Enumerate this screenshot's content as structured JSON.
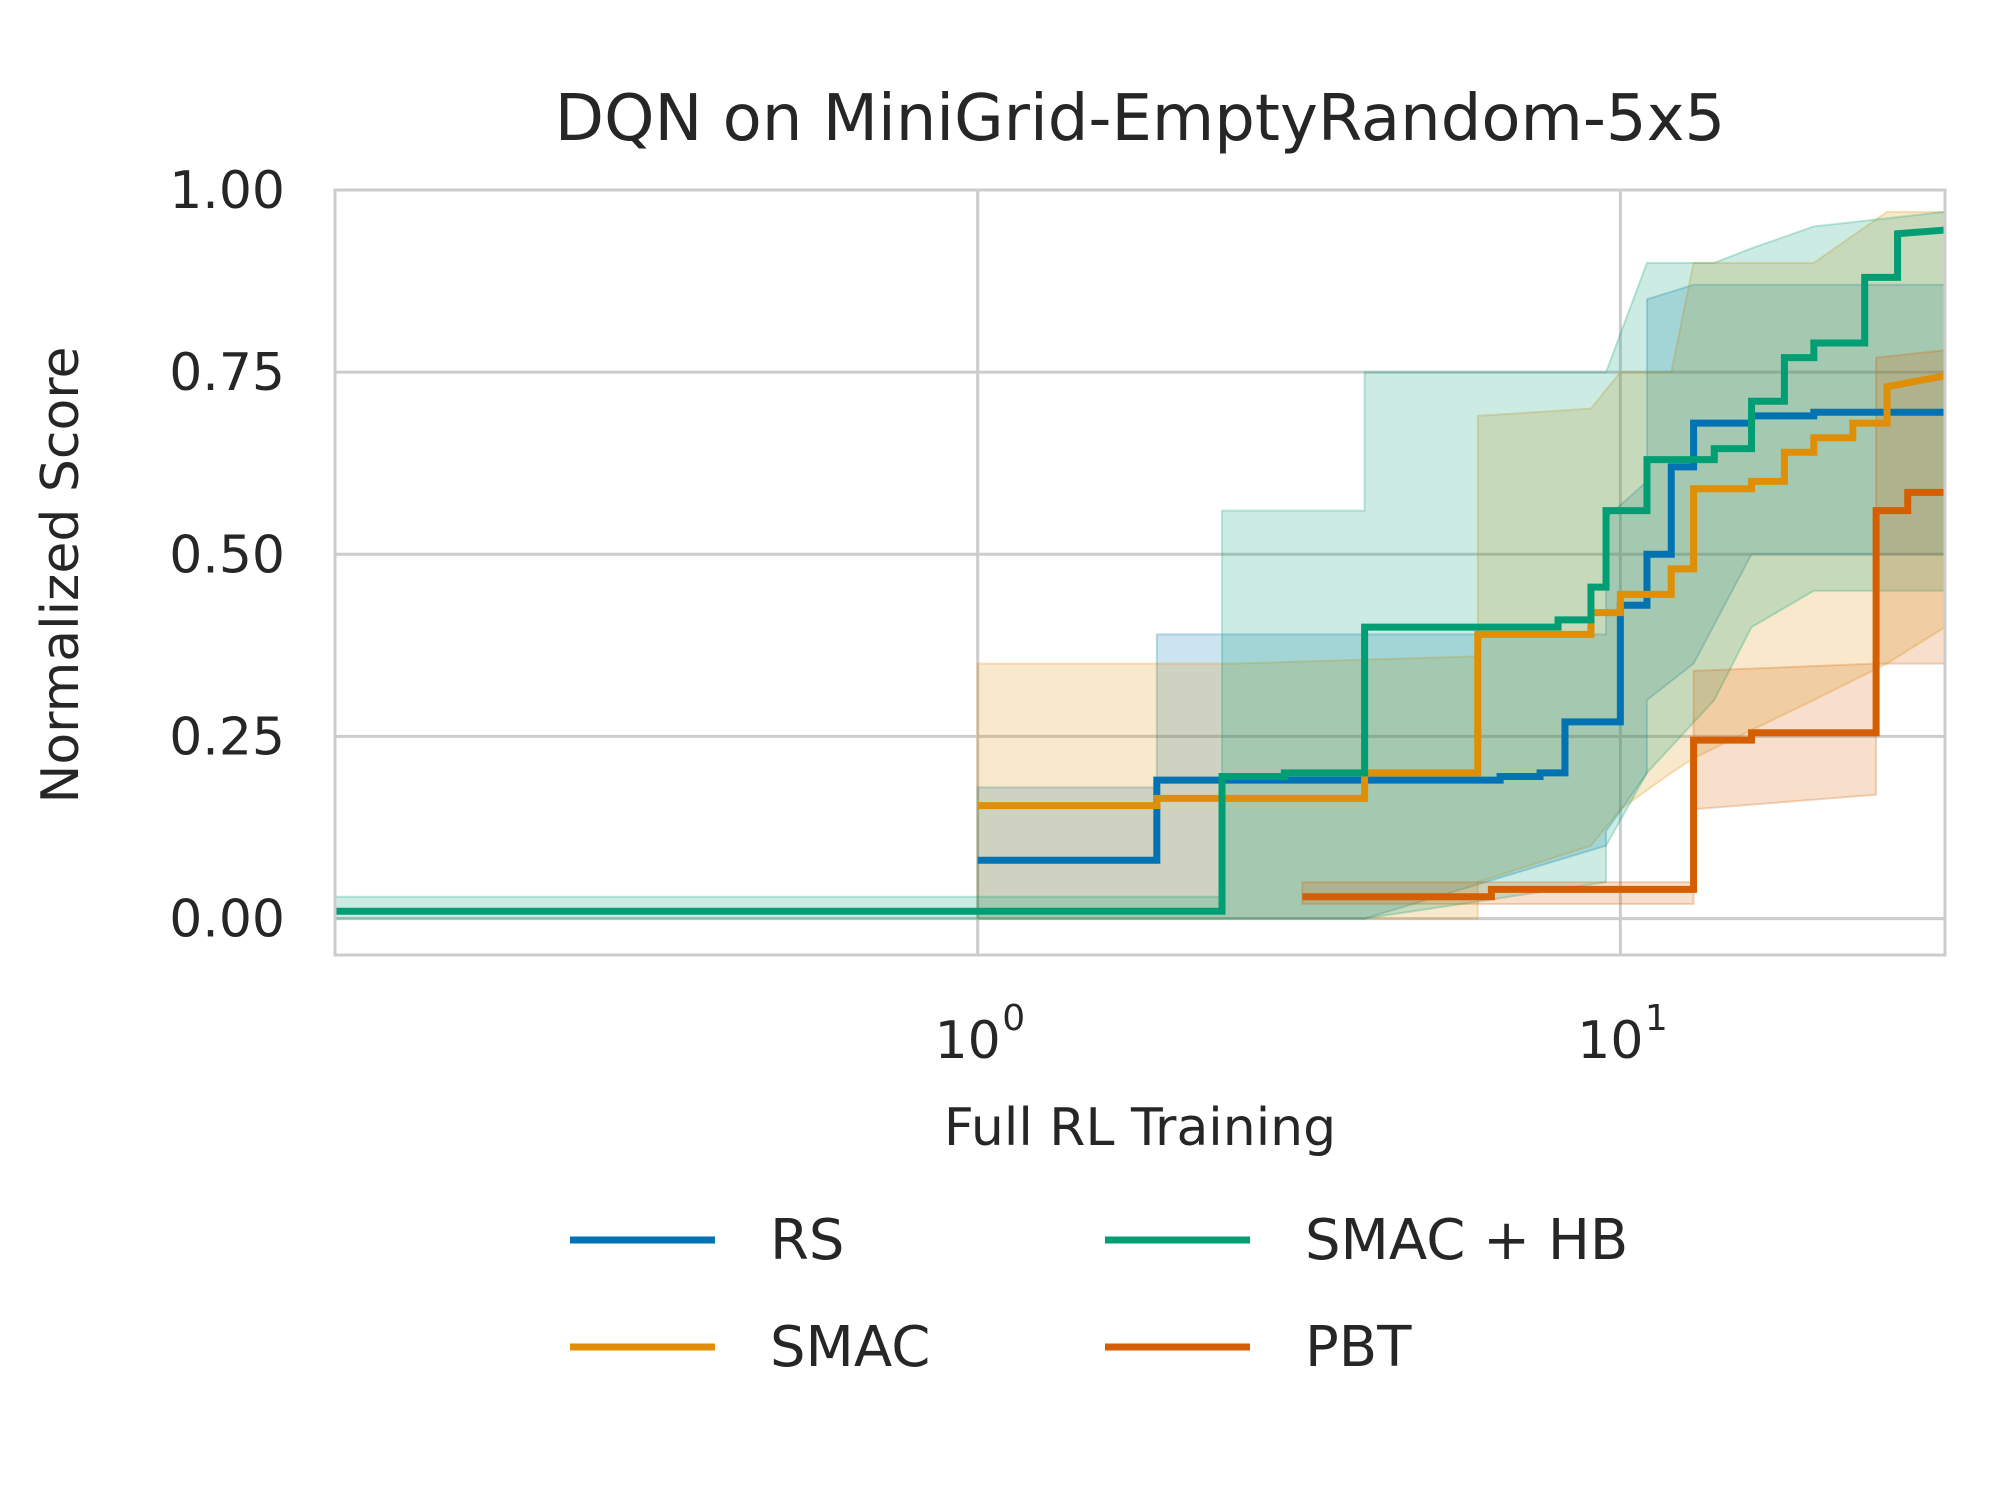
{
  "chart_data": {
    "type": "line",
    "title": "DQN on MiniGrid-EmptyRandom-5x5",
    "xlabel": "Full RL Training",
    "ylabel": "Normalized Score",
    "xscale": "log",
    "xlim": [
      0.1,
      32
    ],
    "ylim": [
      -0.05,
      1.0
    ],
    "grid": true,
    "legend_position": "bottom",
    "yticks": [
      {
        "value": 0.0,
        "label": "0.00"
      },
      {
        "value": 0.25,
        "label": "0.25"
      },
      {
        "value": 0.5,
        "label": "0.50"
      },
      {
        "value": 0.75,
        "label": "0.75"
      },
      {
        "value": 1.0,
        "label": "1.00"
      }
    ],
    "xticks": [
      {
        "value": 1,
        "base": "10",
        "exp": "0"
      },
      {
        "value": 10,
        "base": "10",
        "exp": "1"
      }
    ],
    "series": [
      {
        "name": "RS",
        "color": "#0173b2",
        "points": [
          [
            1.0,
            0.08
          ],
          [
            1.9,
            0.08
          ],
          [
            1.9,
            0.19
          ],
          [
            6.5,
            0.19
          ],
          [
            6.5,
            0.195
          ],
          [
            7.5,
            0.195
          ],
          [
            7.5,
            0.2
          ],
          [
            8.2,
            0.2
          ],
          [
            8.2,
            0.27
          ],
          [
            10.0,
            0.27
          ],
          [
            10.0,
            0.43
          ],
          [
            11.0,
            0.43
          ],
          [
            11.0,
            0.5
          ],
          [
            12.0,
            0.5
          ],
          [
            12.0,
            0.62
          ],
          [
            13.0,
            0.62
          ],
          [
            13.0,
            0.68
          ],
          [
            16.0,
            0.68
          ],
          [
            16.0,
            0.69
          ],
          [
            20.0,
            0.69
          ],
          [
            20.0,
            0.695
          ],
          [
            32.0,
            0.695
          ]
        ],
        "band": [
          [
            1.0,
            0.0,
            0.18
          ],
          [
            1.9,
            0.0,
            0.18
          ],
          [
            1.9,
            0.0,
            0.39
          ],
          [
            4.0,
            0.0,
            0.39
          ],
          [
            4.0,
            0.0,
            0.39
          ],
          [
            9.5,
            0.1,
            0.39
          ],
          [
            9.5,
            0.12,
            0.55
          ],
          [
            11.0,
            0.2,
            0.6
          ],
          [
            11.0,
            0.3,
            0.85
          ],
          [
            13.0,
            0.35,
            0.87
          ],
          [
            16.0,
            0.5,
            0.87
          ],
          [
            32.0,
            0.5,
            0.87
          ]
        ]
      },
      {
        "name": "SMAC",
        "color": "#de8f05",
        "points": [
          [
            1.0,
            0.155
          ],
          [
            1.9,
            0.155
          ],
          [
            1.9,
            0.165
          ],
          [
            4.0,
            0.165
          ],
          [
            4.0,
            0.2
          ],
          [
            6.0,
            0.2
          ],
          [
            6.0,
            0.39
          ],
          [
            9.0,
            0.39
          ],
          [
            9.0,
            0.42
          ],
          [
            10.0,
            0.42
          ],
          [
            10.0,
            0.445
          ],
          [
            12.0,
            0.445
          ],
          [
            12.0,
            0.48
          ],
          [
            13.0,
            0.48
          ],
          [
            13.0,
            0.59
          ],
          [
            16.0,
            0.59
          ],
          [
            16.0,
            0.6
          ],
          [
            18.0,
            0.6
          ],
          [
            18.0,
            0.64
          ],
          [
            20.0,
            0.64
          ],
          [
            20.0,
            0.66
          ],
          [
            23.0,
            0.66
          ],
          [
            23.0,
            0.68
          ],
          [
            26.0,
            0.68
          ],
          [
            26.0,
            0.73
          ],
          [
            32.0,
            0.745
          ]
        ],
        "band": [
          [
            1.0,
            0.0,
            0.35
          ],
          [
            1.9,
            0.0,
            0.35
          ],
          [
            2.5,
            0.0,
            0.35
          ],
          [
            6.0,
            0.0,
            0.36
          ],
          [
            6.0,
            0.05,
            0.69
          ],
          [
            9.0,
            0.1,
            0.7
          ],
          [
            10.0,
            0.15,
            0.75
          ],
          [
            12.0,
            0.2,
            0.75
          ],
          [
            13.0,
            0.22,
            0.9
          ],
          [
            20.0,
            0.3,
            0.9
          ],
          [
            26.0,
            0.35,
            0.97
          ],
          [
            32.0,
            0.4,
            0.97
          ]
        ]
      },
      {
        "name": "SMAC + HB",
        "color": "#029e73",
        "points": [
          [
            0.1,
            0.01
          ],
          [
            2.4,
            0.01
          ],
          [
            2.4,
            0.195
          ],
          [
            3.0,
            0.195
          ],
          [
            3.0,
            0.2
          ],
          [
            4.0,
            0.2
          ],
          [
            4.0,
            0.4
          ],
          [
            8.0,
            0.4
          ],
          [
            8.0,
            0.41
          ],
          [
            9.0,
            0.41
          ],
          [
            9.0,
            0.455
          ],
          [
            9.5,
            0.455
          ],
          [
            9.5,
            0.56
          ],
          [
            11.0,
            0.56
          ],
          [
            11.0,
            0.63
          ],
          [
            14.0,
            0.63
          ],
          [
            14.0,
            0.645
          ],
          [
            16.0,
            0.645
          ],
          [
            16.0,
            0.71
          ],
          [
            18.0,
            0.71
          ],
          [
            18.0,
            0.77
          ],
          [
            20.0,
            0.77
          ],
          [
            20.0,
            0.79
          ],
          [
            24.0,
            0.79
          ],
          [
            24.0,
            0.88
          ],
          [
            27.0,
            0.88
          ],
          [
            27.0,
            0.94
          ],
          [
            32.0,
            0.945
          ]
        ],
        "band": [
          [
            0.1,
            0.0,
            0.03
          ],
          [
            2.4,
            0.0,
            0.03
          ],
          [
            2.4,
            0.0,
            0.56
          ],
          [
            4.0,
            0.0,
            0.56
          ],
          [
            4.0,
            0.0,
            0.75
          ],
          [
            9.5,
            0.05,
            0.75
          ],
          [
            9.5,
            0.1,
            0.75
          ],
          [
            11.0,
            0.2,
            0.9
          ],
          [
            14.0,
            0.3,
            0.9
          ],
          [
            16.0,
            0.4,
            0.92
          ],
          [
            20.0,
            0.45,
            0.95
          ],
          [
            32.0,
            0.45,
            0.97
          ]
        ]
      },
      {
        "name": "PBT",
        "color": "#d55e00",
        "points": [
          [
            3.2,
            0.03
          ],
          [
            6.3,
            0.03
          ],
          [
            6.3,
            0.04
          ],
          [
            13.0,
            0.04
          ],
          [
            13.0,
            0.245
          ],
          [
            16.0,
            0.245
          ],
          [
            16.0,
            0.255
          ],
          [
            25.0,
            0.255
          ],
          [
            25.0,
            0.56
          ],
          [
            28.0,
            0.56
          ],
          [
            28.0,
            0.585
          ],
          [
            32.0,
            0.585
          ]
        ],
        "band": [
          [
            3.2,
            0.02,
            0.05
          ],
          [
            13.0,
            0.02,
            0.05
          ],
          [
            13.0,
            0.15,
            0.34
          ],
          [
            25.0,
            0.17,
            0.35
          ],
          [
            25.0,
            0.35,
            0.77
          ],
          [
            32.0,
            0.35,
            0.78
          ]
        ]
      }
    ]
  }
}
